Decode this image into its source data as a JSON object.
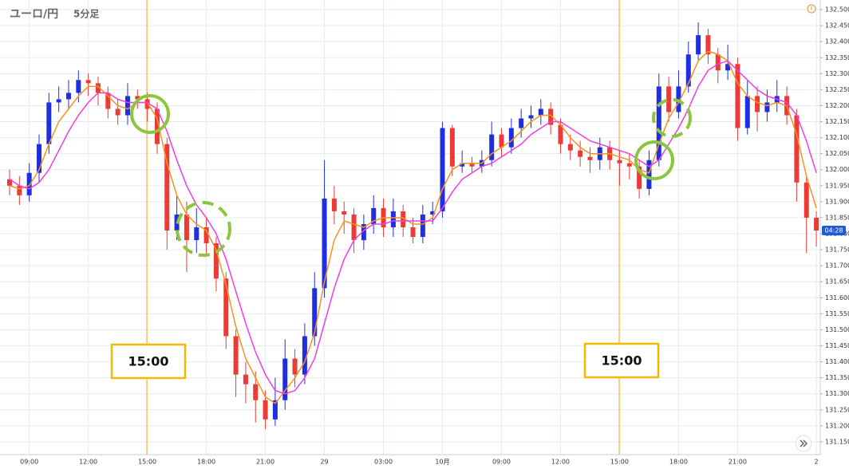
{
  "chart_data": {
    "type": "candlestick",
    "title": "ユーロ/円",
    "subtitle": "5分足",
    "categories": [
      null,
      null,
      "09:00",
      null,
      null,
      null,
      null,
      null,
      "12:00",
      null,
      null,
      null,
      null,
      null,
      "15:00",
      null,
      null,
      null,
      null,
      null,
      "18:00",
      null,
      null,
      null,
      null,
      null,
      "21:00",
      null,
      null,
      null,
      null,
      null,
      "29",
      null,
      null,
      null,
      null,
      null,
      "03:00",
      null,
      null,
      null,
      null,
      null,
      "10月",
      null,
      null,
      null,
      null,
      null,
      "09:00",
      null,
      null,
      null,
      null,
      null,
      "12:00",
      null,
      null,
      null,
      null,
      null,
      "15:00",
      null,
      null,
      null,
      null,
      null,
      "18:00",
      null,
      null,
      null,
      null,
      null,
      "21:00",
      null,
      null,
      null,
      null,
      null,
      null,
      null,
      "2"
    ],
    "open": [
      131.97,
      131.95,
      131.92,
      131.99,
      132.08,
      132.21,
      132.22,
      132.24,
      132.28,
      132.27,
      132.24,
      132.19,
      132.17,
      132.23,
      132.22,
      132.19,
      132.08,
      131.81,
      131.86,
      131.78,
      131.82,
      131.77,
      131.66,
      131.48,
      131.36,
      131.33,
      131.28,
      131.22,
      131.28,
      131.41,
      131.36,
      131.48,
      131.63,
      131.91,
      131.87,
      131.86,
      131.78,
      131.83,
      131.88,
      131.82,
      131.87,
      131.82,
      131.79,
      131.86,
      131.87,
      132.13,
      132.01,
      132.02,
      132.01,
      132.03,
      132.11,
      132.07,
      132.13,
      132.16,
      132.17,
      132.19,
      132.14,
      132.08,
      132.06,
      132.04,
      132.03,
      132.07,
      132.03,
      132.02,
      132.01,
      131.94,
      132.03,
      132.26,
      132.18,
      132.26,
      132.36,
      132.42,
      132.36,
      132.31,
      132.33,
      132.13,
      132.23,
      132.18,
      132.21,
      132.23,
      132.17,
      131.96,
      131.85
    ],
    "high": [
      132.0,
      131.98,
      132.02,
      132.11,
      132.24,
      132.26,
      132.28,
      132.31,
      132.3,
      132.29,
      132.26,
      132.22,
      132.27,
      132.25,
      132.24,
      132.21,
      132.1,
      131.92,
      131.9,
      131.88,
      131.85,
      131.79,
      131.68,
      131.5,
      131.4,
      131.37,
      131.31,
      131.35,
      131.47,
      131.44,
      131.52,
      131.68,
      132.03,
      131.95,
      131.9,
      131.88,
      131.86,
      131.92,
      131.91,
      131.91,
      131.89,
      131.85,
      131.89,
      131.9,
      132.15,
      132.14,
      132.06,
      132.04,
      132.06,
      132.15,
      132.13,
      132.16,
      132.19,
      132.2,
      132.22,
      132.21,
      132.16,
      132.11,
      132.09,
      132.07,
      132.1,
      132.09,
      132.06,
      132.05,
      132.03,
      132.06,
      132.3,
      132.29,
      132.31,
      132.4,
      132.46,
      132.44,
      132.38,
      132.39,
      132.35,
      132.28,
      132.26,
      132.25,
      132.28,
      132.26,
      132.19,
      131.98,
      131.87
    ],
    "low": [
      131.92,
      131.89,
      131.9,
      131.96,
      132.05,
      132.18,
      132.19,
      132.21,
      132.23,
      132.2,
      132.16,
      132.14,
      132.14,
      132.19,
      132.15,
      132.05,
      131.75,
      131.78,
      131.68,
      131.74,
      131.73,
      131.62,
      131.44,
      131.29,
      131.27,
      131.21,
      131.19,
      131.2,
      131.25,
      131.32,
      131.33,
      131.45,
      131.6,
      131.83,
      131.8,
      131.74,
      131.75,
      131.8,
      131.79,
      131.79,
      131.79,
      131.77,
      131.77,
      131.83,
      131.85,
      131.98,
      131.99,
      131.99,
      131.99,
      132.01,
      132.04,
      132.05,
      132.1,
      132.13,
      132.14,
      132.11,
      132.05,
      132.03,
      132.01,
      131.99,
      132.0,
      132.0,
      131.95,
      131.97,
      131.91,
      131.92,
      132.01,
      132.15,
      132.16,
      132.24,
      132.34,
      132.33,
      132.27,
      132.28,
      132.09,
      132.11,
      132.12,
      132.15,
      132.18,
      132.14,
      131.9,
      131.74,
      131.76
    ],
    "close": [
      131.95,
      131.92,
      131.99,
      132.08,
      132.21,
      132.22,
      132.24,
      132.28,
      132.27,
      132.24,
      132.19,
      132.17,
      132.23,
      132.22,
      132.19,
      132.08,
      131.81,
      131.86,
      131.78,
      131.82,
      131.77,
      131.66,
      131.48,
      131.36,
      131.33,
      131.28,
      131.22,
      131.28,
      131.41,
      131.36,
      131.48,
      131.63,
      131.91,
      131.87,
      131.86,
      131.78,
      131.83,
      131.88,
      131.82,
      131.87,
      131.82,
      131.79,
      131.86,
      131.87,
      132.13,
      132.01,
      132.02,
      132.01,
      132.03,
      132.11,
      132.07,
      132.13,
      132.16,
      132.17,
      132.19,
      132.14,
      132.08,
      132.06,
      132.04,
      132.03,
      132.07,
      132.03,
      132.02,
      132.01,
      131.94,
      132.03,
      132.26,
      132.18,
      132.26,
      132.36,
      132.42,
      132.36,
      132.31,
      132.33,
      132.13,
      132.23,
      132.18,
      132.21,
      132.23,
      132.17,
      131.96,
      131.85,
      131.81
    ],
    "up_color": "#1f2fe0",
    "down_color": "#ec3b35",
    "lines": [
      {
        "color": "#f7931e",
        "values": [
          131.95,
          131.94,
          131.95,
          132.0,
          132.08,
          132.15,
          132.19,
          132.23,
          132.26,
          132.26,
          132.23,
          132.2,
          132.19,
          132.21,
          132.21,
          132.16,
          132.02,
          131.92,
          131.86,
          131.83,
          131.81,
          131.75,
          131.64,
          131.51,
          131.41,
          131.35,
          131.29,
          131.27,
          131.31,
          131.35,
          131.4,
          131.49,
          131.65,
          131.78,
          131.84,
          131.83,
          131.82,
          131.84,
          131.85,
          131.85,
          131.85,
          131.83,
          131.83,
          131.85,
          131.94,
          132.0,
          132.02,
          132.02,
          132.02,
          132.05,
          132.07,
          132.09,
          132.12,
          132.15,
          132.17,
          132.17,
          132.14,
          132.1,
          132.07,
          132.05,
          132.05,
          132.05,
          132.04,
          132.03,
          132.0,
          131.99,
          132.08,
          132.16,
          132.21,
          132.27,
          132.34,
          132.37,
          132.36,
          132.34,
          132.27,
          132.23,
          132.21,
          132.2,
          132.21,
          132.2,
          132.11,
          131.98,
          131.88
        ]
      },
      {
        "color": "#f03ee0",
        "values": [
          131.97,
          131.95,
          131.94,
          131.96,
          132.0,
          132.06,
          132.12,
          132.17,
          132.21,
          132.24,
          132.24,
          132.22,
          132.21,
          132.21,
          132.21,
          132.19,
          132.12,
          132.03,
          131.95,
          131.89,
          131.85,
          131.8,
          131.72,
          131.62,
          131.52,
          131.43,
          131.36,
          131.31,
          131.3,
          131.31,
          131.35,
          131.41,
          131.52,
          131.63,
          131.72,
          131.78,
          131.81,
          131.83,
          131.83,
          131.84,
          131.84,
          131.84,
          131.84,
          131.84,
          131.88,
          131.93,
          131.97,
          131.99,
          132.01,
          132.02,
          132.04,
          132.06,
          132.08,
          132.11,
          132.13,
          132.15,
          132.15,
          132.13,
          132.11,
          132.09,
          132.08,
          132.07,
          132.06,
          132.05,
          132.03,
          132.01,
          132.03,
          132.08,
          132.13,
          132.19,
          132.26,
          132.31,
          132.33,
          132.34,
          132.31,
          132.28,
          132.25,
          132.23,
          132.22,
          132.21,
          132.17,
          132.09,
          131.99
        ]
      }
    ],
    "ylim": [
      131.11,
      132.53
    ],
    "yticks": [
      {
        "value": 131.15,
        "label": "131.150"
      },
      {
        "value": 131.2,
        "label": "131.200"
      },
      {
        "value": 131.25,
        "label": "131.250"
      },
      {
        "value": 131.3,
        "label": "131.300"
      },
      {
        "value": 131.35,
        "label": "131.350"
      },
      {
        "value": 131.4,
        "label": "131.400"
      },
      {
        "value": 131.45,
        "label": "131.450"
      },
      {
        "value": 131.5,
        "label": "131.500"
      },
      {
        "value": 131.55,
        "label": "131.550"
      },
      {
        "value": 131.6,
        "label": "131.600"
      },
      {
        "value": 131.65,
        "label": "131.650"
      },
      {
        "value": 131.7,
        "label": "131.700"
      },
      {
        "value": 131.75,
        "label": "131.750"
      },
      {
        "value": 131.8,
        "label": "131.800"
      },
      {
        "value": 131.85,
        "label": "131.850"
      },
      {
        "value": 131.9,
        "label": "131.900"
      },
      {
        "value": 131.95,
        "label": "131.950"
      },
      {
        "value": 132,
        "label": "132.000"
      },
      {
        "value": 132.05,
        "label": "132.050"
      },
      {
        "value": 132.1,
        "label": "132.100"
      },
      {
        "value": 132.15,
        "label": "132.150"
      },
      {
        "value": 132.2,
        "label": "132.200"
      },
      {
        "value": 132.25,
        "label": "132.250"
      },
      {
        "value": 132.3,
        "label": "132.300"
      },
      {
        "value": 132.35,
        "label": "132.350"
      },
      {
        "value": 132.4,
        "label": "132.400"
      },
      {
        "value": 132.45,
        "label": "132.450"
      },
      {
        "value": 132.5,
        "label": "132.500"
      }
    ],
    "grid": true,
    "last_label": "04:28",
    "annotations": [
      "15:00",
      "15:00"
    ]
  }
}
